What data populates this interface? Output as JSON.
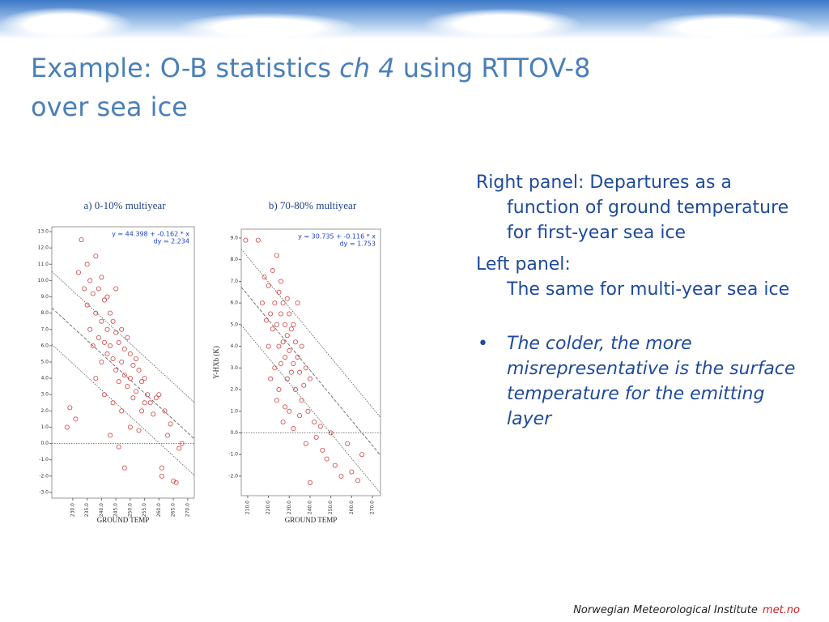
{
  "slide": {
    "title": {
      "part1": "Example: O-B statistics ",
      "italic": "ch 4",
      "part2": " using RTTOV-8",
      "line2": "over sea ice"
    },
    "text": {
      "p1": "Right panel: Departures as a function of ground temperature for first-year sea ice",
      "p2a": "Left panel:",
      "p2b": "The same for multi-year sea ice",
      "bullet": "The colder, the more misrepresentative is the surface temperature for the emitting layer"
    },
    "footer": {
      "institute": "Norwegian Meteorological Institute",
      "site": "met.no"
    }
  },
  "chart_data": [
    {
      "type": "scatter",
      "title": "a) 0-10% multiyear",
      "xlabel": "GROUND TEMP",
      "annotations": [
        "y = 44.398 + -0.162 * x",
        "dy = 2.234"
      ],
      "fit": {
        "intercept": 44.398,
        "slope": -0.162,
        "dy": 2.234
      },
      "color": "#d04040",
      "xlim": [
        222.7,
        272.3
      ],
      "ylim": [
        -3.35,
        13.3
      ],
      "xticks": [
        {
          "value": 230,
          "label": "230.0"
        },
        {
          "value": 235,
          "label": "235.0"
        },
        {
          "value": 240,
          "label": "240.0"
        },
        {
          "value": 245,
          "label": "245.0"
        },
        {
          "value": 250,
          "label": "250.0"
        },
        {
          "value": 255,
          "label": "255.0"
        },
        {
          "value": 260,
          "label": "260.0"
        },
        {
          "value": 265,
          "label": "265.0"
        },
        {
          "value": 270,
          "label": "270.0"
        }
      ],
      "yticks": [
        {
          "value": -3,
          "label": "-3.0"
        },
        {
          "value": -2,
          "label": "-2.0"
        },
        {
          "value": -1,
          "label": "-1.0"
        },
        {
          "value": 0,
          "label": "0.0"
        },
        {
          "value": 1,
          "label": "1.0"
        },
        {
          "value": 2,
          "label": "2.0"
        },
        {
          "value": 3,
          "label": "3.0"
        },
        {
          "value": 4,
          "label": "4.0"
        },
        {
          "value": 5,
          "label": "5.0"
        },
        {
          "value": 6,
          "label": "6.0"
        },
        {
          "value": 7,
          "label": "7.0"
        },
        {
          "value": 8,
          "label": "8.0"
        },
        {
          "value": 9,
          "label": "9.0"
        },
        {
          "value": 10,
          "label": "10.0"
        },
        {
          "value": 11,
          "label": "11.0"
        },
        {
          "value": 12,
          "label": "12.0"
        },
        {
          "value": 13,
          "label": "13.0"
        }
      ],
      "x": [
        228,
        229,
        231,
        232,
        233,
        234,
        235,
        235,
        236,
        236,
        237,
        237,
        238,
        238,
        238,
        239,
        239,
        240,
        240,
        240,
        241,
        241,
        241,
        242,
        242,
        242,
        243,
        243,
        243,
        244,
        244,
        244,
        245,
        245,
        245,
        246,
        246,
        246,
        247,
        247,
        247,
        248,
        248,
        248,
        249,
        249,
        250,
        250,
        250,
        251,
        251,
        252,
        252,
        253,
        253,
        254,
        254,
        255,
        255,
        256,
        257,
        258,
        259,
        260,
        261,
        261,
        262,
        263,
        264,
        265,
        266,
        267,
        268
      ],
      "values": [
        1.0,
        2.2,
        1.5,
        10.5,
        12.5,
        9.5,
        11.0,
        8.5,
        10.0,
        7.0,
        9.2,
        6.0,
        11.5,
        8.0,
        4.0,
        9.5,
        6.5,
        10.2,
        7.5,
        5.0,
        8.8,
        6.2,
        3.0,
        9.0,
        7.0,
        5.5,
        8.0,
        6.0,
        0.5,
        7.5,
        5.2,
        2.5,
        9.5,
        6.8,
        4.5,
        6.2,
        3.8,
        -0.2,
        7.0,
        5.0,
        2.0,
        5.8,
        4.2,
        -1.5,
        6.5,
        3.5,
        5.5,
        4.0,
        1.0,
        4.8,
        2.8,
        5.2,
        3.2,
        4.5,
        0.8,
        3.8,
        2.0,
        4.0,
        2.5,
        3.0,
        2.5,
        1.8,
        2.8,
        3.0,
        -1.5,
        -2.0,
        2.0,
        0.5,
        1.2,
        -2.3,
        -2.4,
        -0.3,
        0.0
      ]
    },
    {
      "type": "scatter",
      "title": "b) 70-80% multiyear",
      "xlabel": "GROUND TEMP",
      "ylabel": "Y-HXb (K)",
      "annotations": [
        "y = 30.735 + -0.116 * x",
        "dy = 1.753"
      ],
      "fit": {
        "intercept": 30.735,
        "slope": -0.116,
        "dy": 1.753
      },
      "color": "#d04040",
      "xlim": [
        206.9,
        273.9
      ],
      "ylim": [
        -2.9,
        9.41
      ],
      "xticks": [
        {
          "value": 210,
          "label": "210.0"
        },
        {
          "value": 220,
          "label": "220.0"
        },
        {
          "value": 230,
          "label": "230.0"
        },
        {
          "value": 240,
          "label": "240.0"
        },
        {
          "value": 250,
          "label": "250.0"
        },
        {
          "value": 260,
          "label": "260.0"
        },
        {
          "value": 270,
          "label": "270.0"
        }
      ],
      "yticks": [
        {
          "value": -2,
          "label": "-2.0"
        },
        {
          "value": -1,
          "label": "-1.0"
        },
        {
          "value": 0,
          "label": "0.0"
        },
        {
          "value": 1,
          "label": "1.0"
        },
        {
          "value": 2,
          "label": "2.0"
        },
        {
          "value": 3,
          "label": "3.0"
        },
        {
          "value": 4,
          "label": "4.0"
        },
        {
          "value": 5,
          "label": "5.0"
        },
        {
          "value": 6,
          "label": "6.0"
        },
        {
          "value": 7,
          "label": "7.0"
        },
        {
          "value": 8,
          "label": "8.0"
        },
        {
          "value": 9,
          "label": "9.0"
        }
      ],
      "x": [
        209,
        215,
        217,
        218,
        219,
        220,
        220,
        221,
        221,
        222,
        222,
        223,
        223,
        224,
        224,
        224,
        225,
        225,
        225,
        226,
        226,
        226,
        227,
        227,
        227,
        228,
        228,
        228,
        229,
        229,
        229,
        230,
        230,
        230,
        231,
        231,
        232,
        232,
        232,
        233,
        233,
        234,
        234,
        235,
        235,
        236,
        236,
        237,
        238,
        238,
        239,
        240,
        240,
        242,
        243,
        245,
        246,
        248,
        250,
        252,
        255,
        258,
        260,
        263,
        265
      ],
      "values": [
        8.9,
        8.9,
        6.0,
        7.2,
        5.2,
        6.8,
        4.0,
        5.5,
        2.5,
        7.5,
        4.8,
        6.0,
        3.0,
        8.2,
        5.0,
        1.5,
        6.5,
        4.0,
        2.0,
        7.0,
        5.5,
        3.2,
        6.0,
        4.2,
        0.5,
        5.0,
        3.5,
        1.2,
        6.2,
        4.5,
        2.5,
        5.5,
        3.8,
        1.0,
        4.8,
        2.8,
        5.0,
        3.2,
        0.2,
        4.2,
        2.0,
        6.0,
        3.5,
        2.8,
        0.8,
        4.0,
        1.5,
        2.2,
        3.0,
        -0.5,
        1.0,
        2.5,
        -2.3,
        0.5,
        -0.2,
        0.3,
        -0.8,
        -1.2,
        0.0,
        -1.5,
        -2.0,
        -0.5,
        -1.8,
        -2.2,
        -1.0
      ]
    }
  ]
}
